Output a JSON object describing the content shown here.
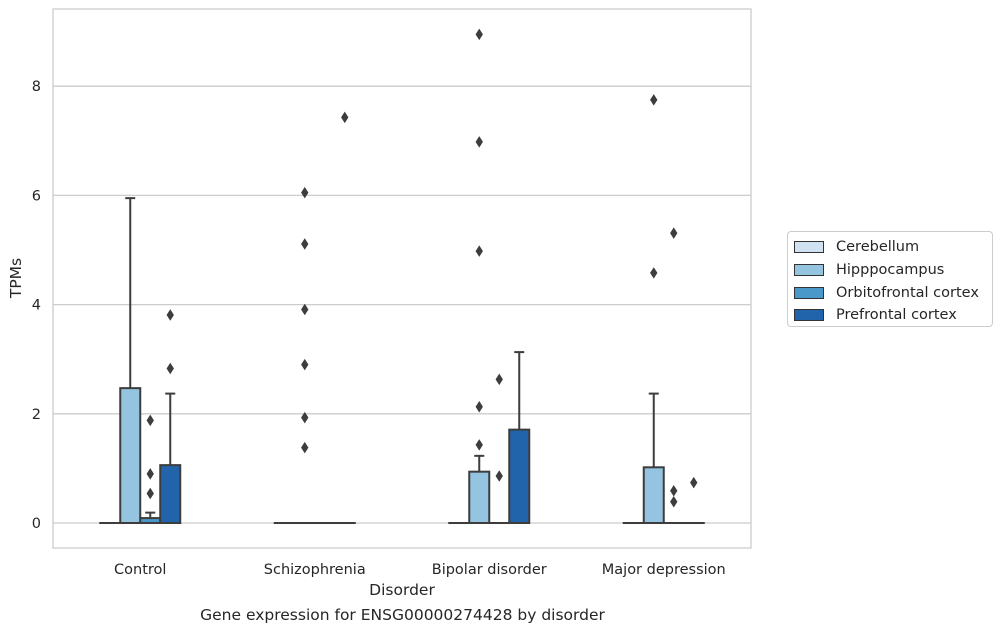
{
  "chart_data": {
    "type": "box",
    "caption": "Gene expression for ENSG00000274428 by disorder",
    "xlabel": "Disorder",
    "ylabel": "TPMs",
    "ylim": [
      -0.45,
      9.4
    ],
    "yticks": [
      0,
      2,
      4,
      6,
      8
    ],
    "grid": "horizontal",
    "legend_placement": "right",
    "categories": [
      "Control",
      "Schizophrenia",
      "Bipolar disorder",
      "Major depression"
    ],
    "series": [
      {
        "name": "Cerebellum",
        "color": "#d0e1f2",
        "boxes": [
          {
            "q1": 0,
            "median": 0,
            "q3": 0,
            "whisker_low": 0,
            "whisker_high": 0,
            "outliers": []
          },
          {
            "q1": 0,
            "median": 0,
            "q3": 0,
            "whisker_low": 0,
            "whisker_high": 0,
            "outliers": []
          },
          {
            "q1": 0,
            "median": 0,
            "q3": 0,
            "whisker_low": 0,
            "whisker_high": 0,
            "outliers": []
          },
          {
            "q1": 0,
            "median": 0,
            "q3": 0,
            "whisker_low": 0,
            "whisker_high": 0,
            "outliers": []
          }
        ]
      },
      {
        "name": "Hipppocampus",
        "color": "#94c4df",
        "boxes": [
          {
            "q1": 0,
            "median": 0,
            "q3": 2.47,
            "whisker_low": 0,
            "whisker_high": 5.95,
            "outliers": []
          },
          {
            "q1": 0,
            "median": 0,
            "q3": 0,
            "whisker_low": 0,
            "whisker_high": 0,
            "outliers": [
              1.38,
              1.93,
              2.9,
              3.91,
              5.11,
              6.05
            ]
          },
          {
            "q1": 0,
            "median": 0,
            "q3": 0.94,
            "whisker_low": 0,
            "whisker_high": 1.23,
            "outliers": [
              1.43,
              2.13,
              4.98,
              6.98,
              8.95
            ]
          },
          {
            "q1": 0,
            "median": 0,
            "q3": 1.02,
            "whisker_low": 0,
            "whisker_high": 2.37,
            "outliers": [
              4.58,
              7.75
            ]
          }
        ]
      },
      {
        "name": "Orbitofrontal cortex",
        "color": "#4a98c9",
        "boxes": [
          {
            "q1": 0,
            "median": 0,
            "q3": 0.09,
            "whisker_low": 0,
            "whisker_high": 0.19,
            "outliers": [
              0.54,
              0.9,
              1.88
            ]
          },
          {
            "q1": 0,
            "median": 0,
            "q3": 0,
            "whisker_low": 0,
            "whisker_high": 0,
            "outliers": []
          },
          {
            "q1": 0,
            "median": 0,
            "q3": 0,
            "whisker_low": 0,
            "whisker_high": 0,
            "outliers": [
              0.86,
              2.63
            ]
          },
          {
            "q1": 0,
            "median": 0,
            "q3": 0,
            "whisker_low": 0,
            "whisker_high": 0,
            "outliers": [
              0.39,
              0.59,
              5.31
            ]
          }
        ]
      },
      {
        "name": "Prefrontal cortex",
        "color": "#2164ab",
        "boxes": [
          {
            "q1": 0,
            "median": 0,
            "q3": 1.06,
            "whisker_low": 0,
            "whisker_high": 2.37,
            "outliers": [
              2.83,
              3.81
            ]
          },
          {
            "q1": 0,
            "median": 0,
            "q3": 0,
            "whisker_low": 0,
            "whisker_high": 0,
            "outliers": [
              7.43
            ]
          },
          {
            "q1": 0,
            "median": 0,
            "q3": 1.71,
            "whisker_low": 0,
            "whisker_high": 3.13,
            "outliers": []
          },
          {
            "q1": 0,
            "median": 0,
            "q3": 0,
            "whisker_low": 0,
            "whisker_high": 0,
            "outliers": [
              0.74
            ]
          }
        ]
      }
    ]
  }
}
